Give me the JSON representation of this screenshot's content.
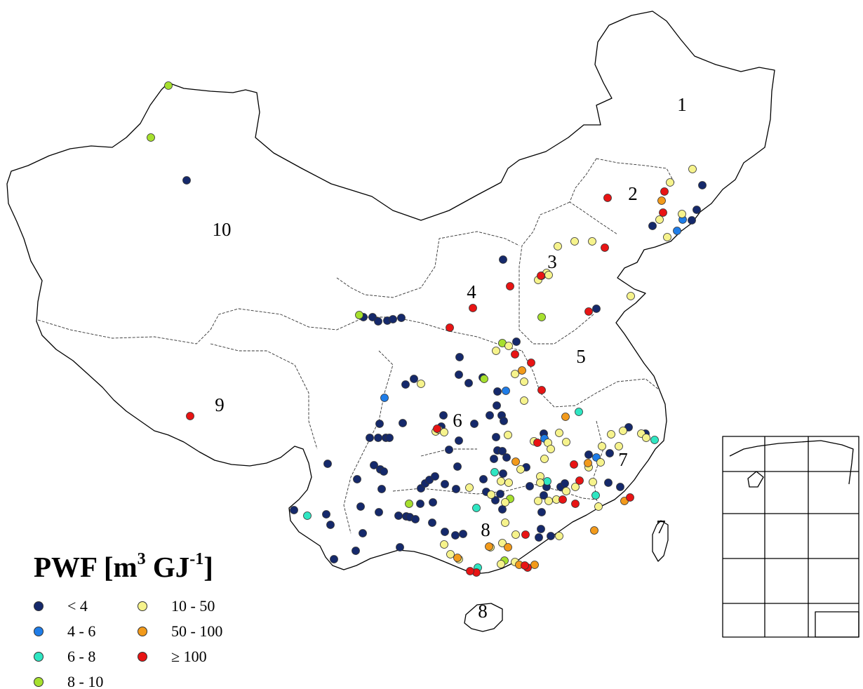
{
  "legend": {
    "title_main": "PWF [m",
    "title_sup1": "3",
    "title_mid": " GJ",
    "title_sup2": "-1",
    "title_end": "]",
    "classes": [
      {
        "label": "< 4",
        "color": "#15296b"
      },
      {
        "label": "4 - 6",
        "color": "#1f7de8"
      },
      {
        "label": "6 - 8",
        "color": "#2fe6c2"
      },
      {
        "label": "8 - 10",
        "color": "#a6e02e"
      },
      {
        "label": "10 - 50",
        "color": "#f6f38c"
      },
      {
        "label": "50 - 100",
        "color": "#f29a1b"
      },
      {
        "label": "≥ 100",
        "color": "#e81414"
      }
    ]
  },
  "regions": [
    "1",
    "2",
    "3",
    "4",
    "5",
    "6",
    "7",
    "7",
    "8",
    "8",
    "9",
    "10"
  ],
  "stations_by_class": {
    "< 4": 96,
    "4 - 6": 6,
    "6 - 8": 8,
    "8 - 10": 9,
    "10 - 50": 62,
    "50 - 100": 12,
    "≥ 100": 28
  },
  "inset": "South China Sea islands"
}
